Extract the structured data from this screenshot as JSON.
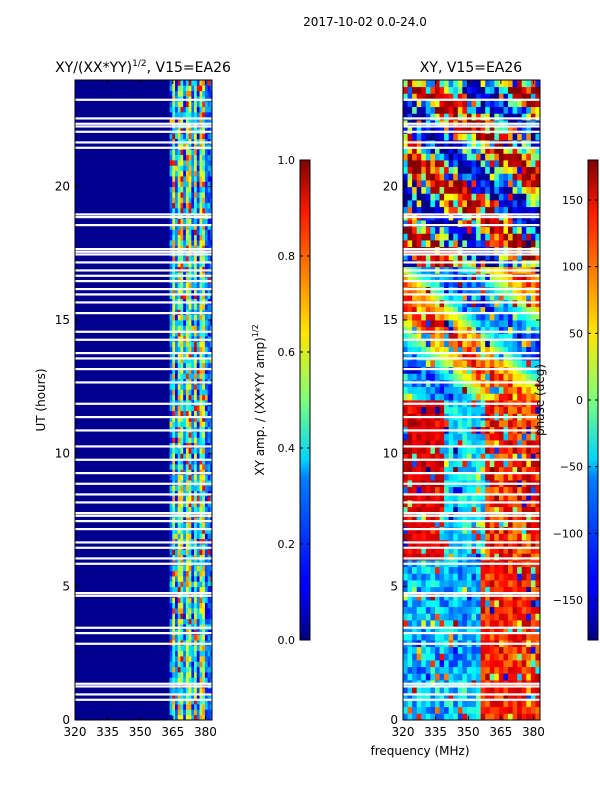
{
  "suptitle": "2017-10-02 0.0-24.0",
  "shared_xlabel": "frequency (MHz)",
  "chart_data": [
    {
      "type": "heatmap",
      "title_main": "XY/(XX*YY)",
      "title_exp": "1/2",
      "title_rest": ", V15=EA26",
      "ylabel": "UT (hours)",
      "xlim": [
        320,
        383
      ],
      "ylim": [
        0,
        24
      ],
      "x_ticks": [
        320,
        335,
        350,
        365,
        380
      ],
      "y_ticks": [
        0,
        5,
        10,
        15,
        20
      ],
      "colormap": "jet",
      "colorbar": {
        "label_main": "XY amp. / (XX*YY amp)",
        "label_exp": "1/2",
        "range": [
          0.0,
          1.0
        ],
        "ticks": [
          "0.0",
          "0.2",
          "0.4",
          "0.6",
          "0.8",
          "1.0"
        ],
        "tick_values": [
          0.0,
          0.2,
          0.4,
          0.6,
          0.8,
          1.0
        ]
      }
    },
    {
      "type": "heatmap",
      "title": "XY, V15=EA26",
      "xlabel": "frequency (MHz)",
      "xlim": [
        320,
        383
      ],
      "ylim": [
        0,
        24
      ],
      "x_ticks": [
        320,
        335,
        350,
        365,
        380
      ],
      "y_ticks": [
        0,
        5,
        10,
        15,
        20
      ],
      "colormap": "jet",
      "colorbar": {
        "label": "phase (deg)",
        "range": [
          -180,
          180
        ],
        "ticks": [
          "150",
          "100",
          "50",
          "0",
          "−50",
          "−100",
          "−150"
        ],
        "tick_values": [
          150,
          100,
          50,
          0,
          -50,
          -100,
          -150
        ]
      }
    }
  ],
  "missing_ut_bands": [
    0.8,
    1.0,
    1.3,
    1.4,
    2.9,
    3.3,
    3.5,
    4.7,
    4.8,
    5.9,
    6.1,
    6.5,
    6.7,
    7.2,
    7.5,
    7.7,
    7.8,
    8.2,
    8.5,
    8.9,
    9.3,
    9.8,
    10.3,
    10.9,
    11.4,
    11.9,
    12.7,
    13.2,
    13.6,
    13.8,
    14.3,
    14.6,
    15.3,
    15.7,
    16.0,
    16.2,
    16.5,
    16.7,
    16.9,
    17.2,
    17.5,
    17.6,
    17.7,
    18.6,
    18.9,
    19.0,
    21.5,
    21.7,
    22.1,
    22.3,
    22.4,
    22.6,
    23.3
  ],
  "amp_hot_channels_mhz": [
    365.5,
    368.5,
    372,
    375.5,
    378.5
  ]
}
